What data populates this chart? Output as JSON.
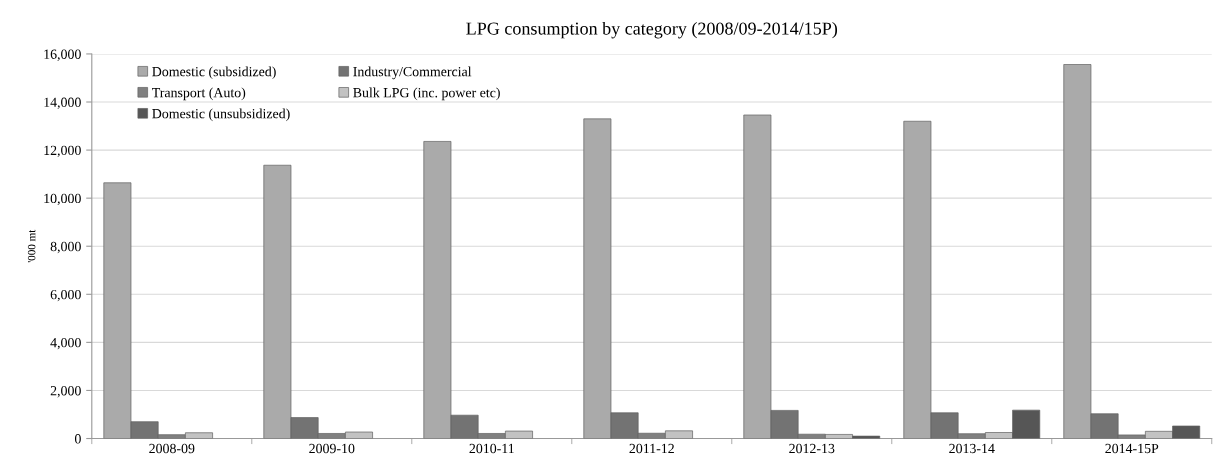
{
  "chart_data": {
    "type": "bar",
    "title": "LPG consumption by category (2008/09-2014/15P)",
    "ylabel": "'000 mt",
    "categories": [
      "2008-09",
      "2009-10",
      "2010-11",
      "2011-12",
      "2012-13",
      "2013-14",
      "2014-15P"
    ],
    "series": [
      {
        "name": "Domestic (subsidized)",
        "color": "#aaaaaa",
        "values": [
          10640,
          11370,
          12360,
          13300,
          13460,
          13200,
          15560
        ]
      },
      {
        "name": "Industry/Commercial",
        "color": "#737373",
        "values": [
          700,
          870,
          970,
          1070,
          1170,
          1070,
          1030
        ]
      },
      {
        "name": "Transport (Auto)",
        "color": "#808080",
        "values": [
          160,
          210,
          210,
          220,
          180,
          200,
          150
        ]
      },
      {
        "name": "Bulk LPG (inc. power etc)",
        "color": "#c2c2c2",
        "values": [
          240,
          270,
          310,
          320,
          170,
          250,
          300
        ]
      },
      {
        "name": "Domestic (unsubsidized)",
        "color": "#565656",
        "values": [
          null,
          null,
          null,
          null,
          100,
          1180,
          520
        ]
      }
    ],
    "ylim": [
      0,
      16000
    ],
    "yticks": [
      {
        "value": 0,
        "label": "0"
      },
      {
        "value": 2000,
        "label": "2,000"
      },
      {
        "value": 4000,
        "label": "4,000"
      },
      {
        "value": 6000,
        "label": "6,000"
      },
      {
        "value": 8000,
        "label": "8,000"
      },
      {
        "value": 10000,
        "label": "10,000"
      },
      {
        "value": 12000,
        "label": "12,000"
      },
      {
        "value": 14000,
        "label": "14,000"
      },
      {
        "value": 16000,
        "label": "16,000"
      }
    ],
    "grid": "y",
    "legend": "top left"
  }
}
